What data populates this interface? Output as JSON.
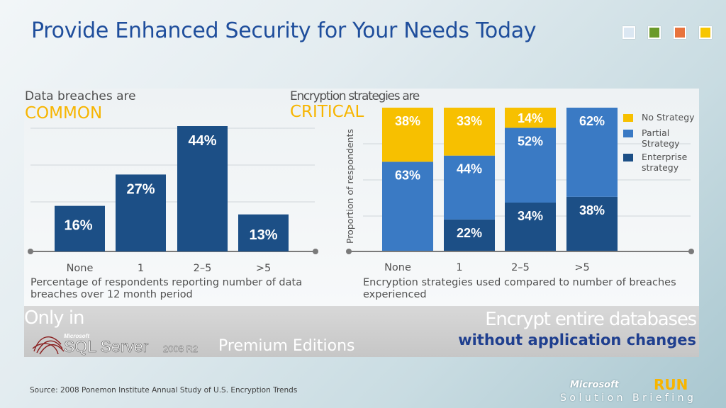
{
  "title": "Provide Enhanced Security for Your Needs Today",
  "swatch_colors": [
    "#dbe7f2",
    "#6a9a2a",
    "#e8733c",
    "#f7c600"
  ],
  "left_panel": {
    "heading": "Data breaches are",
    "heading_strong": "COMMON",
    "caption_line1": "Percentage of respondents reporting number of data",
    "caption_line2": "breaches over 12 month period"
  },
  "right_panel": {
    "heading": "Encryption strategies are",
    "heading_strong": "CRITICAL",
    "caption_line1": "Encryption strategies used compared to number of breaches",
    "caption_line2": "experienced"
  },
  "chart_data": [
    {
      "type": "bar",
      "categories": [
        "None",
        "1",
        "2–5",
        ">5"
      ],
      "values": [
        16,
        27,
        44,
        13
      ],
      "value_labels": [
        "16%",
        "27%",
        "44%",
        "13%"
      ],
      "ylim": [
        0,
        50
      ],
      "color": "#1c4f86",
      "grid": true
    },
    {
      "type": "bar",
      "stacked": true,
      "ylabel": "Proportion of respondents",
      "categories": [
        "None",
        "1",
        "2–5",
        ">5"
      ],
      "series": [
        {
          "name": "Enterprise strategy",
          "values": [
            0,
            22,
            34,
            38
          ],
          "labels": [
            "",
            "22%",
            "34%",
            "38%"
          ],
          "color": "#1c4f86"
        },
        {
          "name": "Partial Strategy",
          "values": [
            63,
            44,
            52,
            62
          ],
          "labels": [
            "63%",
            "44%",
            "52%",
            "62%"
          ],
          "color": "#3a7ac4"
        },
        {
          "name": "No Strategy",
          "values": [
            38,
            33,
            14,
            0
          ],
          "labels": [
            "38%",
            "33%",
            "14%",
            ""
          ],
          "color": "#f7c000"
        }
      ],
      "legend": [
        "No Strategy",
        "Partial Strategy",
        "Enterprise strategy"
      ],
      "legend_position": "right",
      "grid": true
    }
  ],
  "banner": {
    "only_in": "Only in",
    "product_brand": "Microsoft",
    "product_name": "SQL Server",
    "product_version": "2008 R2",
    "premium": "Premium Editions",
    "encrypt_line": "Encrypt entire databases",
    "encrypt_sub": "without application changes"
  },
  "footer": {
    "source": "Source: 2008 Ponemon Institute Annual Study of U.S. Encryption Trends",
    "brand": "Microsoft",
    "run": "RUN",
    "briefing": "Solution Briefing"
  }
}
